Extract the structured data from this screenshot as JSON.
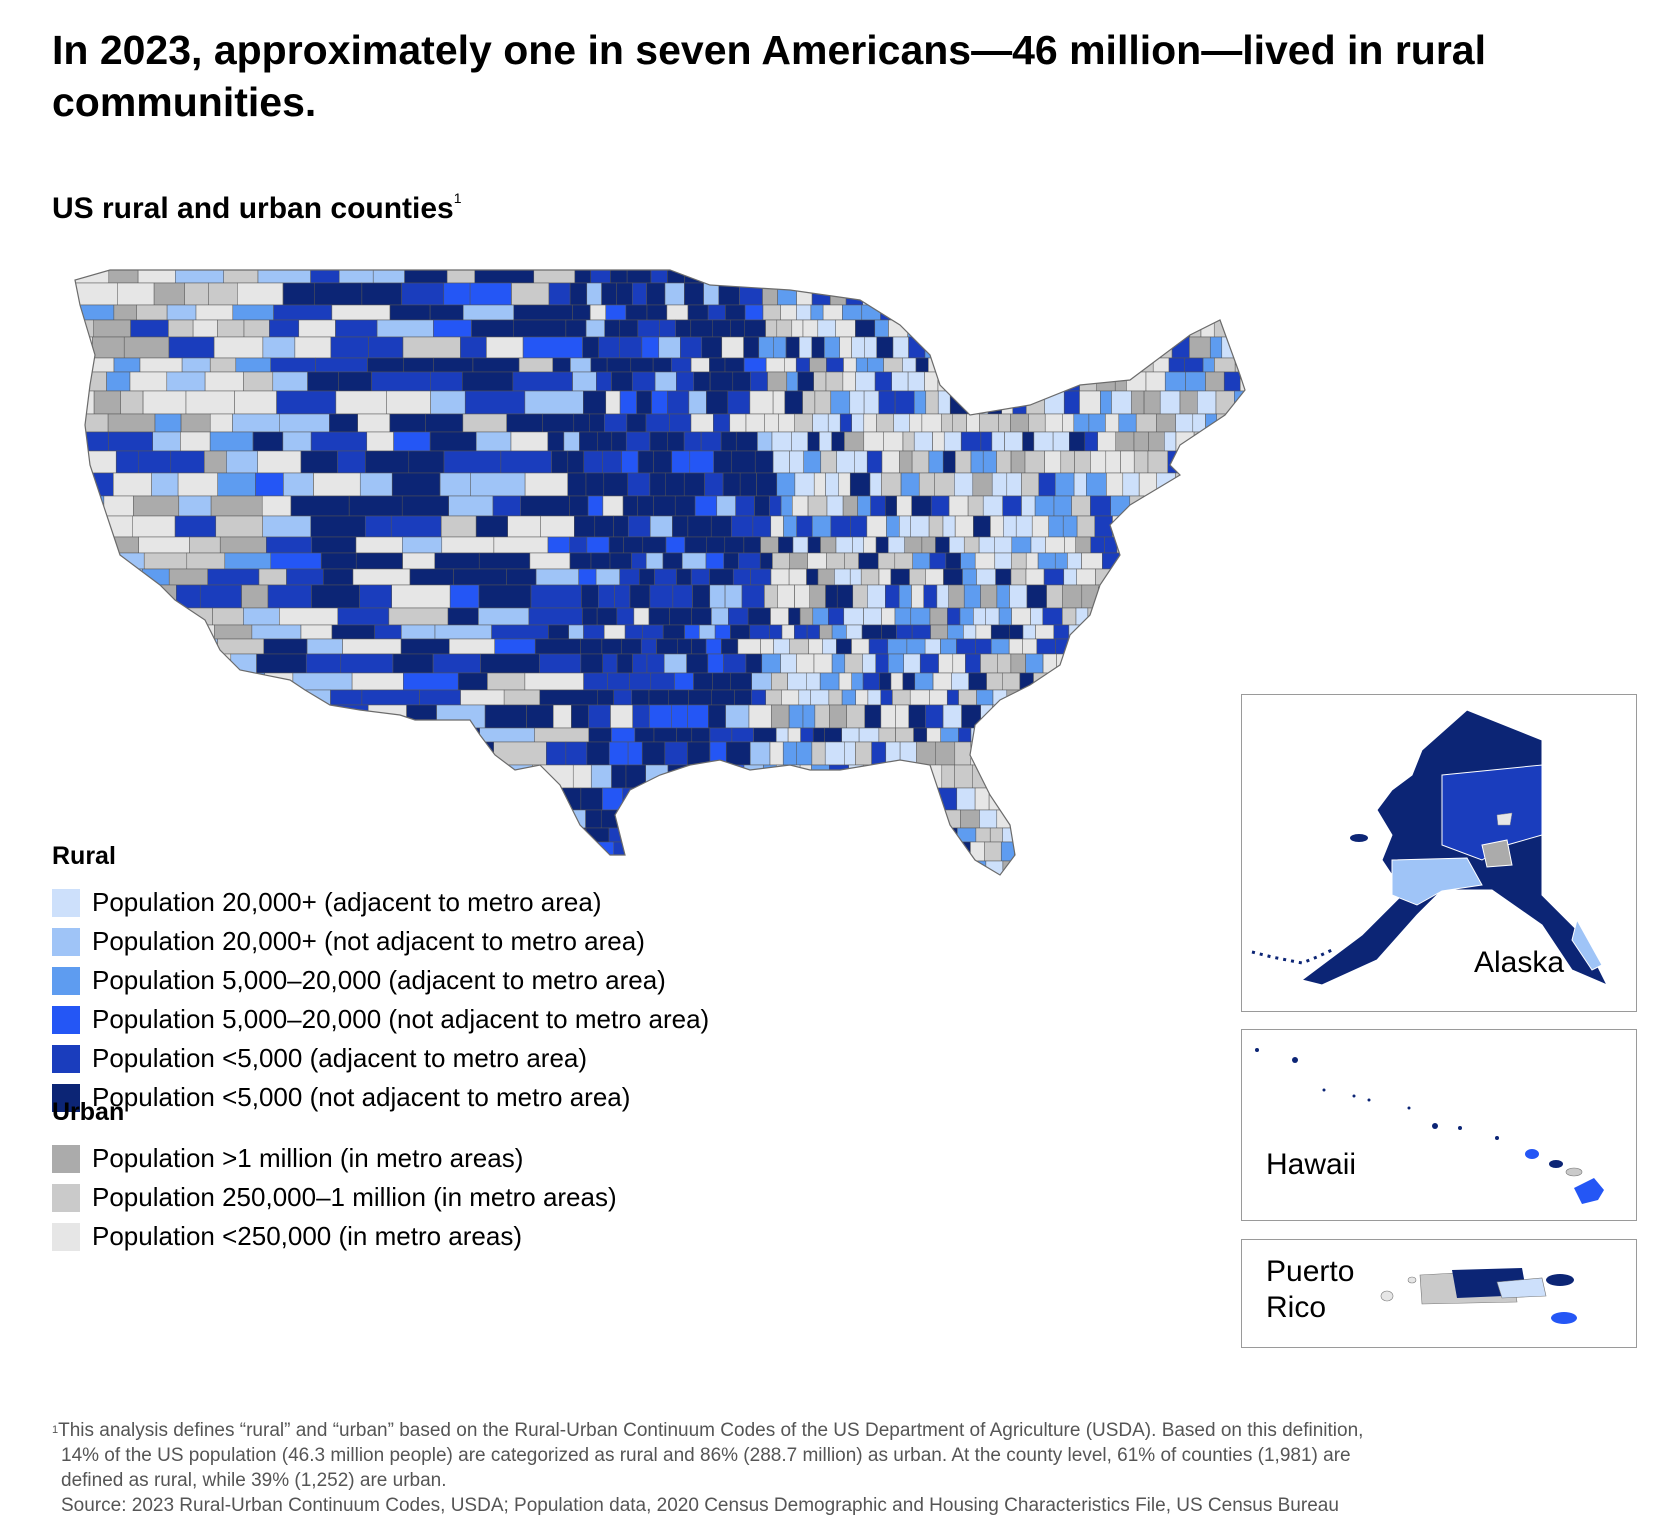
{
  "headline": "In 2023, approximately one in seven Americans—46 million—lived in rural communities.",
  "subtitle": "US rural and urban counties",
  "subtitle_marker": "1",
  "colors": {
    "rural_20k_adj": "#cde0fb",
    "rural_20k_nonadj": "#9fc4f7",
    "rural_5k_adj": "#5e9cf0",
    "rural_5k_nonadj": "#2456f5",
    "rural_lt5k_adj": "#1a3dbd",
    "rural_lt5k_nonadj": "#0c2575",
    "urban_1m": "#ababab",
    "urban_250k": "#cacaca",
    "urban_lt250k": "#e6e6e6",
    "border": "#6b6b6b"
  },
  "legend": {
    "rural": {
      "title": "Rural",
      "items": [
        {
          "label": "Population 20,000+ (adjacent to metro area)",
          "color": "#cde0fb"
        },
        {
          "label": "Population 20,000+ (not adjacent to metro area)",
          "color": "#9fc4f7"
        },
        {
          "label": "Population 5,000–20,000 (adjacent to metro area)",
          "color": "#5e9cf0"
        },
        {
          "label": "Population 5,000–20,000 (not adjacent to metro area)",
          "color": "#2456f5"
        },
        {
          "label": "Population <5,000 (adjacent to metro area)",
          "color": "#1a3dbd"
        },
        {
          "label": "Population <5,000 (not adjacent to metro area)",
          "color": "#0c2575"
        }
      ]
    },
    "urban": {
      "title": "Urban",
      "items": [
        {
          "label": "Population >1 million (in metro areas)",
          "color": "#ababab"
        },
        {
          "label": "Population 250,000–1 million (in metro areas)",
          "color": "#cacaca"
        },
        {
          "label": "Population <250,000 (in metro areas)",
          "color": "#e6e6e6"
        }
      ]
    }
  },
  "insets": {
    "alaska": "Alaska",
    "hawaii": "Hawaii",
    "puerto_rico": "Puerto\nRico"
  },
  "footnote": {
    "marker": "1",
    "line1": "This analysis defines “rural” and “urban” based on the Rural-Urban Continuum Codes of the US Department of Agriculture (USDA). Based on this definition,",
    "line2": "14% of the US population (46.3 million people) are categorized as rural and 86% (288.7 million) as urban. At the county level, 61% of counties (1,981) are",
    "line3": "defined as rural, while 39% (1,252) are urban.",
    "source": "Source: 2023 Rural-Urban Continuum Codes, USDA; Population data, 2020 Census Demographic and Housing Characteristics File, US Census Bureau"
  }
}
